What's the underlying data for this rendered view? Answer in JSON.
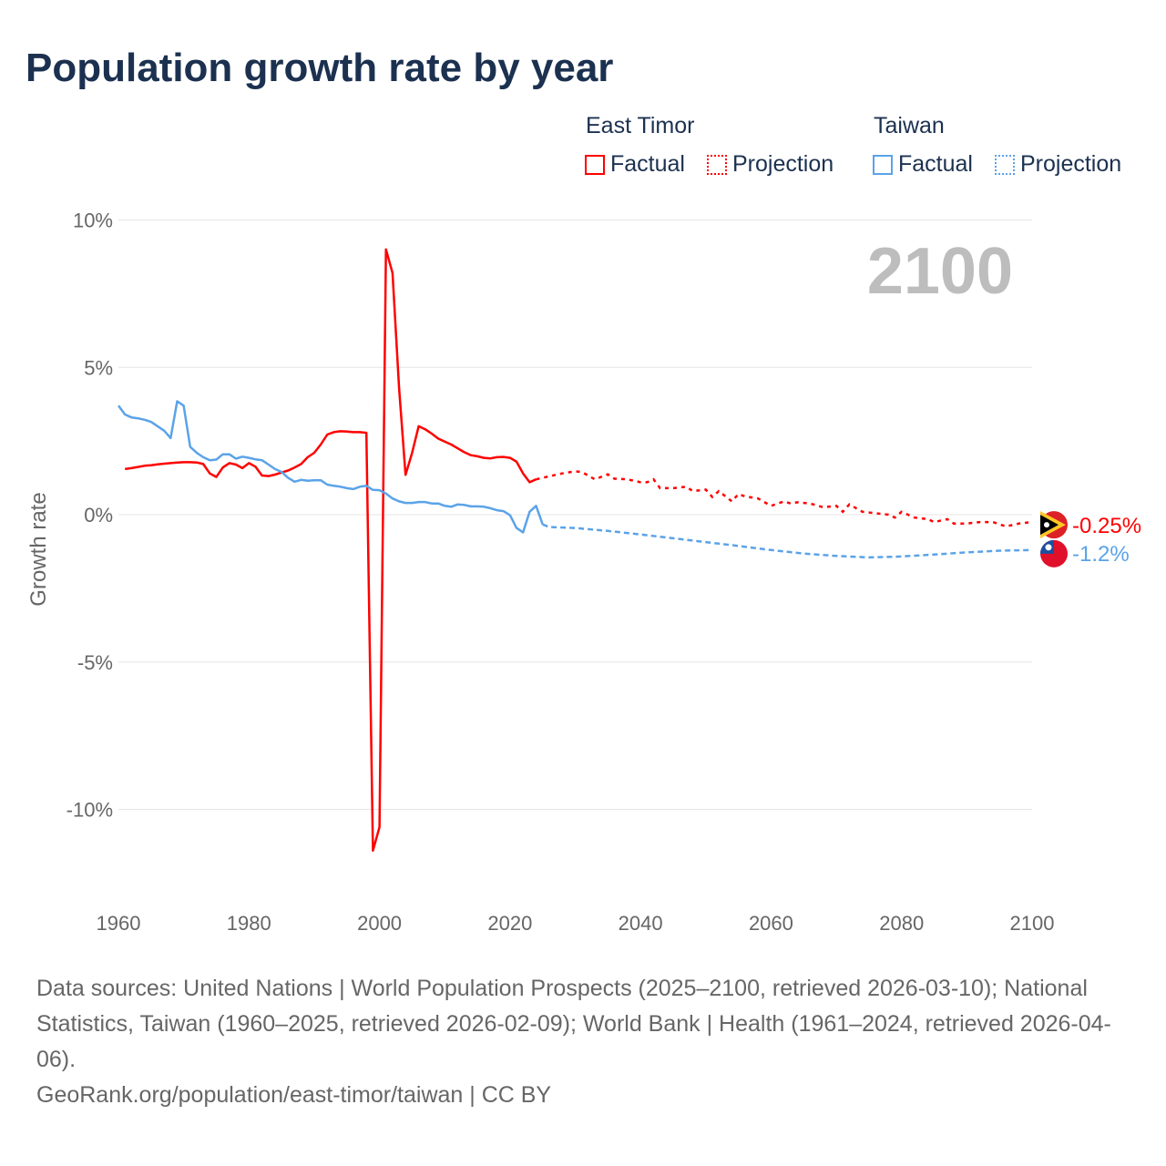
{
  "chart_data": {
    "type": "line",
    "title": "Population growth rate by year",
    "ylabel": "Growth rate",
    "xlabel": "",
    "xlim": [
      1960,
      2100
    ],
    "ylim": [
      -12.5,
      10.5
    ],
    "xticks": [
      "1960",
      "1980",
      "2000",
      "2020",
      "2040",
      "2060",
      "2080",
      "2100"
    ],
    "yticks": [
      {
        "v": 10,
        "label": "10%"
      },
      {
        "v": 5,
        "label": "5%"
      },
      {
        "v": 0,
        "label": "0%"
      },
      {
        "v": -5,
        "label": "-5%"
      },
      {
        "v": -10,
        "label": "-10%"
      }
    ],
    "year_label": "2100",
    "legend": {
      "placement": "top-right",
      "groups": [
        {
          "country": "East Timor",
          "factual": "Factual",
          "projection": "Projection"
        },
        {
          "country": "Taiwan",
          "factual": "Factual",
          "projection": "Projection"
        }
      ]
    },
    "series": [
      {
        "name": "East Timor",
        "color": "#ff0000",
        "end_label": "-0.25%",
        "factual": {
          "x": [
            1961,
            1962,
            1963,
            1964,
            1965,
            1966,
            1967,
            1968,
            1969,
            1970,
            1971,
            1972,
            1973,
            1974,
            1975,
            1976,
            1977,
            1978,
            1979,
            1980,
            1981,
            1982,
            1983,
            1984,
            1985,
            1986,
            1987,
            1988,
            1989,
            1990,
            1991,
            1992,
            1993,
            1994,
            1995,
            1996,
            1997,
            1998,
            1999,
            2000,
            2001,
            2002,
            2003,
            2004,
            2005,
            2006,
            2007,
            2008,
            2009,
            2010,
            2011,
            2012,
            2013,
            2014,
            2015,
            2016,
            2017,
            2018,
            2019,
            2020,
            2021,
            2022,
            2023,
            2024
          ],
          "y": [
            1.55,
            1.58,
            1.62,
            1.66,
            1.68,
            1.71,
            1.73,
            1.75,
            1.77,
            1.78,
            1.78,
            1.77,
            1.72,
            1.4,
            1.28,
            1.6,
            1.75,
            1.7,
            1.58,
            1.75,
            1.63,
            1.33,
            1.31,
            1.36,
            1.43,
            1.5,
            1.6,
            1.72,
            1.95,
            2.1,
            2.38,
            2.72,
            2.8,
            2.83,
            2.82,
            2.8,
            2.8,
            2.78,
            -11.4,
            -10.6,
            9.0,
            8.2,
            4.3,
            1.35,
            2.1,
            3.0,
            2.9,
            2.75,
            2.58,
            2.48,
            2.38,
            2.25,
            2.12,
            2.02,
            1.98,
            1.93,
            1.91,
            1.95,
            1.96,
            1.93,
            1.8,
            1.4,
            1.1,
            1.2
          ]
        },
        "projection": {
          "x": [
            2024,
            2026,
            2028,
            2030,
            2031,
            2033,
            2035,
            2036,
            2038,
            2040,
            2041,
            2042,
            2043,
            2045,
            2047,
            2048,
            2050,
            2051,
            2052,
            2054,
            2055,
            2056,
            2058,
            2060,
            2062,
            2063,
            2064,
            2066,
            2068,
            2070,
            2071,
            2072,
            2074,
            2076,
            2078,
            2079,
            2080,
            2082,
            2084,
            2085,
            2087,
            2088,
            2090,
            2092,
            2094,
            2096,
            2098,
            2100
          ],
          "y": [
            1.2,
            1.3,
            1.4,
            1.47,
            1.45,
            1.2,
            1.37,
            1.22,
            1.2,
            1.1,
            1.1,
            1.2,
            0.9,
            0.9,
            0.95,
            0.8,
            0.85,
            0.6,
            0.8,
            0.45,
            0.7,
            0.62,
            0.55,
            0.3,
            0.45,
            0.38,
            0.42,
            0.38,
            0.25,
            0.3,
            0.1,
            0.35,
            0.1,
            0.05,
            0.0,
            -0.1,
            0.1,
            -0.1,
            -0.15,
            -0.25,
            -0.15,
            -0.3,
            -0.3,
            -0.25,
            -0.25,
            -0.4,
            -0.3,
            -0.25
          ]
        }
      },
      {
        "name": "Taiwan",
        "color": "#5ba3e8",
        "end_label": "-1.2%",
        "factual": {
          "x": [
            1960,
            1961,
            1962,
            1963,
            1964,
            1965,
            1966,
            1967,
            1968,
            1969,
            1970,
            1971,
            1972,
            1973,
            1974,
            1975,
            1976,
            1977,
            1978,
            1979,
            1980,
            1981,
            1982,
            1983,
            1984,
            1985,
            1986,
            1987,
            1988,
            1989,
            1990,
            1991,
            1992,
            1993,
            1994,
            1995,
            1996,
            1997,
            1998,
            1999,
            2000,
            2001,
            2002,
            2003,
            2004,
            2005,
            2006,
            2007,
            2008,
            2009,
            2010,
            2011,
            2012,
            2013,
            2014,
            2015,
            2016,
            2017,
            2018,
            2019,
            2020,
            2021,
            2022,
            2023,
            2024,
            2025
          ],
          "y": [
            3.7,
            3.4,
            3.3,
            3.27,
            3.22,
            3.15,
            3.0,
            2.85,
            2.6,
            3.85,
            3.7,
            2.3,
            2.1,
            1.95,
            1.85,
            1.87,
            2.05,
            2.05,
            1.9,
            1.97,
            1.93,
            1.88,
            1.85,
            1.7,
            1.55,
            1.45,
            1.25,
            1.12,
            1.18,
            1.15,
            1.17,
            1.17,
            1.02,
            0.98,
            0.95,
            0.9,
            0.87,
            0.95,
            0.98,
            0.84,
            0.83,
            0.72,
            0.55,
            0.45,
            0.4,
            0.4,
            0.43,
            0.43,
            0.38,
            0.38,
            0.3,
            0.27,
            0.35,
            0.33,
            0.28,
            0.28,
            0.27,
            0.22,
            0.15,
            0.12,
            -0.02,
            -0.45,
            -0.6,
            0.1,
            0.3,
            -0.33
          ]
        },
        "projection": {
          "x": [
            2025,
            2026,
            2030,
            2035,
            2040,
            2045,
            2050,
            2055,
            2060,
            2065,
            2070,
            2075,
            2080,
            2085,
            2090,
            2095,
            2100
          ],
          "y": [
            -0.33,
            -0.42,
            -0.45,
            -0.55,
            -0.67,
            -0.8,
            -0.93,
            -1.06,
            -1.2,
            -1.32,
            -1.4,
            -1.45,
            -1.42,
            -1.35,
            -1.28,
            -1.22,
            -1.2
          ]
        }
      }
    ]
  },
  "footer": {
    "sources": "Data sources: United Nations | World Population Prospects (2025–2100, retrieved 2026-03-10); National Statistics, Taiwan (1960–2025, retrieved 2026-02-09); World Bank | Health (1961–2024, retrieved 2026-04-06).",
    "credit": "GeoRank.org/population/east-timor/taiwan | CC BY"
  }
}
